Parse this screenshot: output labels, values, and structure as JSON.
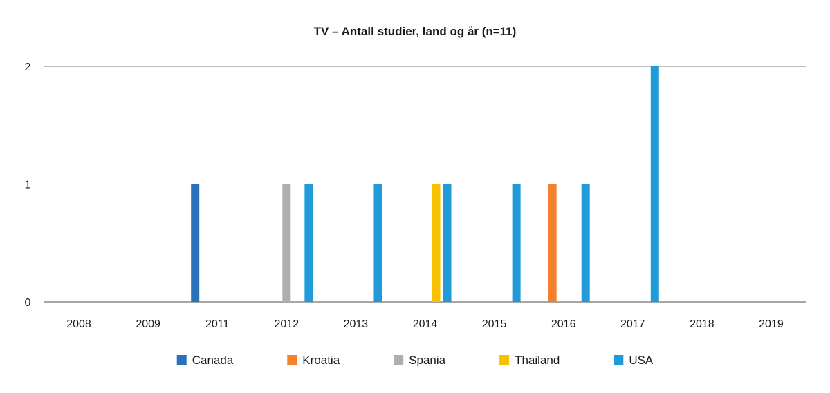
{
  "chart_data": {
    "type": "bar",
    "title": "TV – Antall studier, land og år (n=11)",
    "xlabel": "",
    "ylabel": "",
    "categories": [
      "2008",
      "2009",
      "2011",
      "2012",
      "2013",
      "2014",
      "2015",
      "2016",
      "2017",
      "2018",
      "2019"
    ],
    "ylim": [
      0,
      2
    ],
    "yticks": [
      0,
      1,
      2
    ],
    "grid": true,
    "legend_position": "bottom",
    "series": [
      {
        "name": "Canada",
        "color": "#2a70bb",
        "values": [
          0,
          0,
          1,
          0,
          0,
          0,
          0,
          0,
          0,
          0,
          0
        ]
      },
      {
        "name": "Kroatia",
        "color": "#f5812f",
        "values": [
          0,
          0,
          0,
          0,
          0,
          0,
          0,
          1,
          0,
          0,
          0
        ]
      },
      {
        "name": "Spania",
        "color": "#aeaeae",
        "values": [
          0,
          0,
          0,
          1,
          0,
          0,
          0,
          0,
          0,
          0,
          0
        ]
      },
      {
        "name": "Thailand",
        "color": "#f7c000",
        "values": [
          0,
          0,
          0,
          0,
          0,
          1,
          0,
          0,
          0,
          0,
          0
        ]
      },
      {
        "name": "USA",
        "color": "#209bd8",
        "values": [
          0,
          0,
          0,
          1,
          1,
          1,
          1,
          1,
          2,
          0,
          0
        ]
      }
    ]
  }
}
